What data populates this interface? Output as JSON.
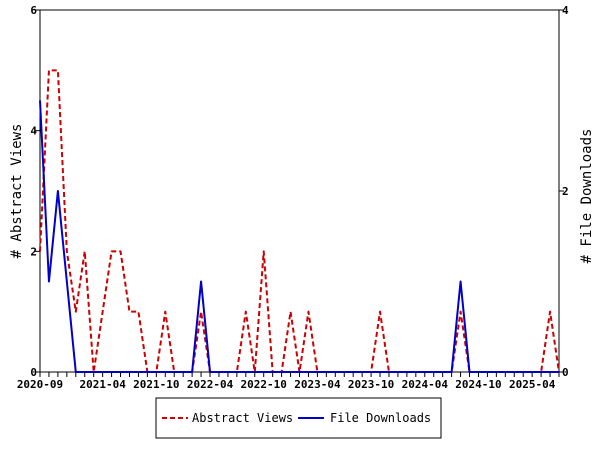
{
  "chart_data": {
    "type": "line",
    "ylabel_left": "# Abstract Views",
    "ylabel_right": "# File Downloads",
    "ylim_left": [
      0,
      6
    ],
    "ylim_right": [
      0,
      4
    ],
    "yticks_left": [
      "0",
      "2",
      "4",
      "6"
    ],
    "yticks_right": [
      "0",
      "2",
      "4"
    ],
    "x_tick_labels": [
      "2020-09",
      "2021-04",
      "2021-10",
      "2022-04",
      "2022-10",
      "2023-04",
      "2023-10",
      "2024-04",
      "2024-10",
      "2025-04"
    ],
    "x_tick_label_index": [
      0,
      7,
      13,
      19,
      25,
      31,
      37,
      43,
      49,
      55
    ],
    "legend_position": "bottom",
    "series": [
      {
        "name": "Abstract Views",
        "axis": "left",
        "color": "#cc0000",
        "dash": "dashed",
        "values": [
          2,
          5,
          5,
          2,
          1,
          2,
          0,
          1,
          2,
          2,
          1,
          1,
          0,
          0,
          1,
          0,
          0,
          0,
          1,
          0,
          0,
          0,
          0,
          1,
          0,
          2,
          0,
          0,
          1,
          0,
          1,
          0,
          0,
          0,
          0,
          0,
          0,
          0,
          1,
          0,
          0,
          0,
          0,
          0,
          0,
          0,
          0,
          1,
          0,
          0,
          0,
          0,
          0,
          0,
          0,
          0,
          0,
          1,
          0
        ]
      },
      {
        "name": "File Downloads",
        "axis": "right",
        "color": "#0000cc",
        "dash": "solid",
        "values": [
          3,
          1,
          2,
          1,
          0,
          0,
          0,
          0,
          0,
          0,
          0,
          0,
          0,
          0,
          0,
          0,
          0,
          0,
          1,
          0,
          0,
          0,
          0,
          0,
          0,
          0,
          0,
          0,
          0,
          0,
          0,
          0,
          0,
          0,
          0,
          0,
          0,
          0,
          0,
          0,
          0,
          0,
          0,
          0,
          0,
          0,
          0,
          1,
          0,
          0,
          0,
          0,
          0,
          0,
          0,
          0,
          0,
          0,
          0
        ]
      }
    ]
  }
}
